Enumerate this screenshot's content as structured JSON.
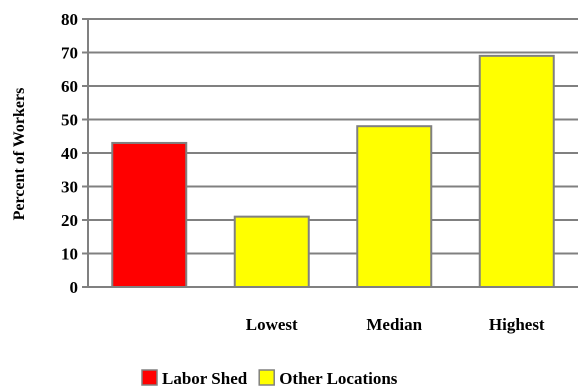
{
  "chart_data": {
    "type": "bar",
    "ylabel": "Percent of Workers",
    "ylim": [
      0,
      80
    ],
    "yticks": [
      0,
      10,
      20,
      30,
      40,
      50,
      60,
      70,
      80
    ],
    "grid": true,
    "legend_position": "bottom",
    "categories": [
      "",
      "Lowest",
      "Median",
      "Highest"
    ],
    "values": [
      43,
      21,
      48,
      69
    ],
    "bar_series": [
      "labor_shed",
      "other_locations",
      "other_locations",
      "other_locations"
    ],
    "series": [
      {
        "key": "labor_shed",
        "name": "Labor Shed",
        "color": "#ff0000"
      },
      {
        "key": "other_locations",
        "name": "Other Locations",
        "color": "#ffff00"
      }
    ],
    "bar_edge_color": "#808080",
    "grid_color": "#808080"
  }
}
